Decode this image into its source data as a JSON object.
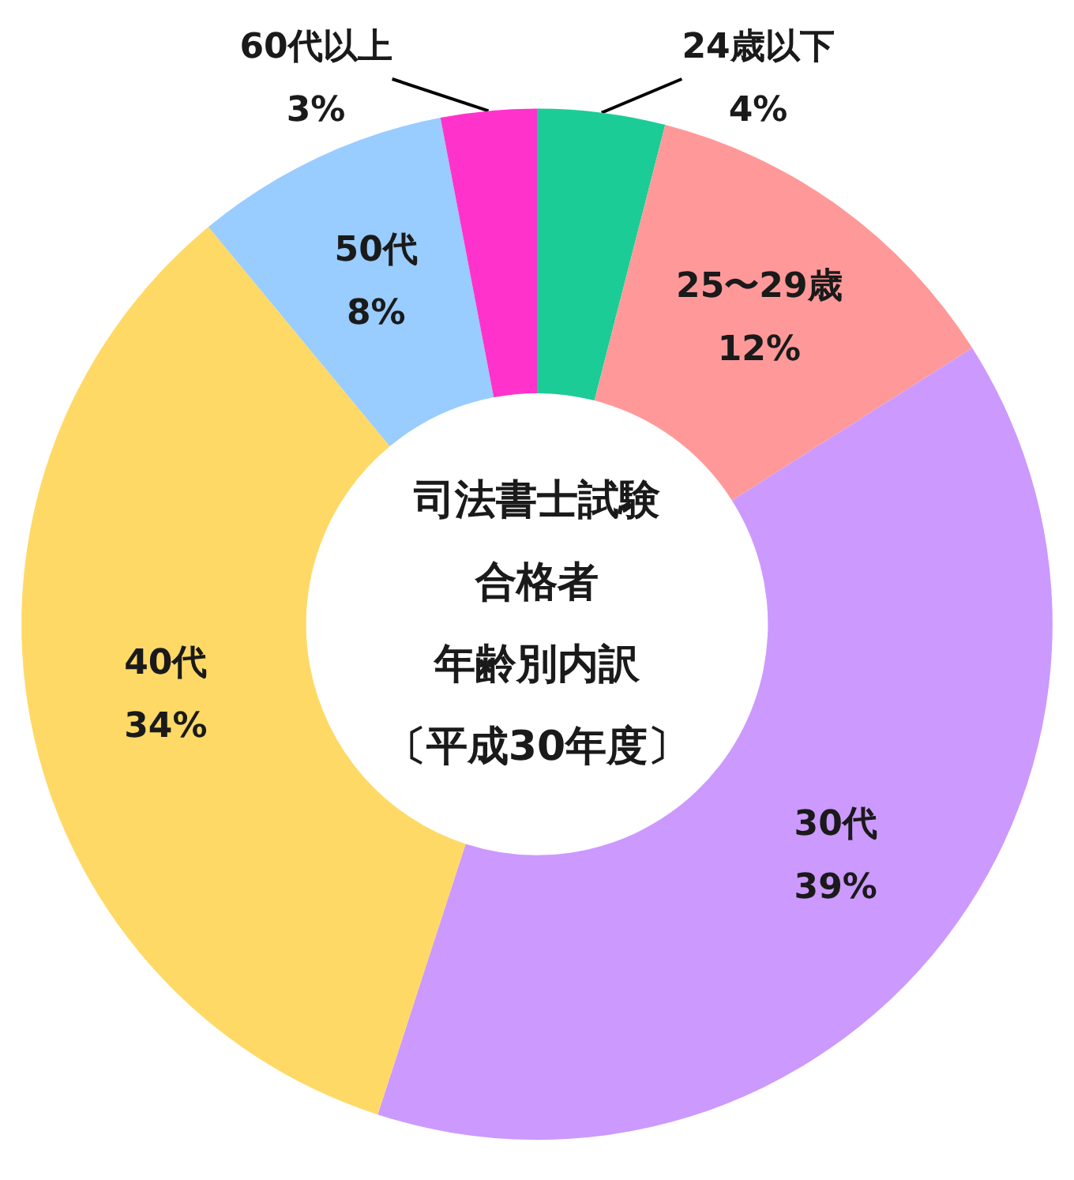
{
  "chart_data": {
    "type": "donut",
    "annotations": [
      "司法書士試験",
      "合格者",
      "年齢別内訳",
      "〔平成30年度〕"
    ],
    "categories": [
      "24歳以下",
      "25〜29歳",
      "30代",
      "40代",
      "50代",
      "60代以上"
    ],
    "values": [
      4,
      12,
      39,
      34,
      8,
      3
    ],
    "value_labels": [
      "4%",
      "12%",
      "39%",
      "34%",
      "8%",
      "3%"
    ],
    "colors": [
      "#1ccc96",
      "#ff9999",
      "#cc99ff",
      "#ffd966",
      "#99ccff",
      "#ff33cc"
    ],
    "legend": false
  }
}
